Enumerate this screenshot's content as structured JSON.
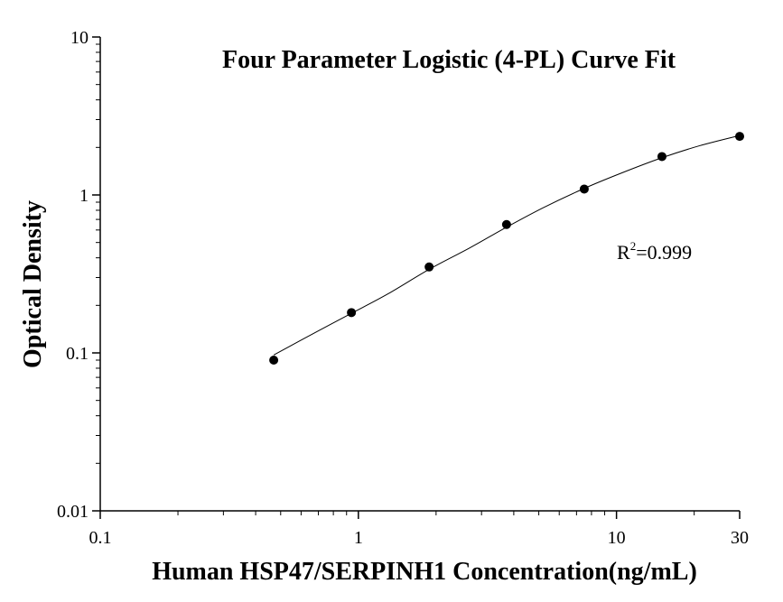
{
  "chart_data": {
    "type": "scatter",
    "title": "Four Parameter Logistic (4-PL) Curve Fit",
    "xlabel": "Human HSP47/SERPINH1 Concentration(ng/mL)",
    "ylabel": "Optical Density",
    "x_scale": "log",
    "y_scale": "log",
    "xlim": [
      0.1,
      30
    ],
    "ylim": [
      0.01,
      10
    ],
    "x_ticks": [
      {
        "value": 0.1,
        "label": "0.1"
      },
      {
        "value": 1,
        "label": "1"
      },
      {
        "value": 10,
        "label": "10"
      },
      {
        "value": 30,
        "label": "30"
      }
    ],
    "y_ticks": [
      {
        "value": 0.01,
        "label": "0.01"
      },
      {
        "value": 0.1,
        "label": "0.1"
      },
      {
        "value": 1,
        "label": "1"
      },
      {
        "value": 10,
        "label": "10"
      }
    ],
    "grid": false,
    "legend": "none",
    "points": [
      {
        "x": 0.47,
        "y": 0.09
      },
      {
        "x": 0.94,
        "y": 0.18
      },
      {
        "x": 1.88,
        "y": 0.35
      },
      {
        "x": 3.75,
        "y": 0.65
      },
      {
        "x": 7.5,
        "y": 1.09
      },
      {
        "x": 15,
        "y": 1.75
      },
      {
        "x": 30,
        "y": 2.35
      }
    ],
    "fit_curve": [
      {
        "x": 0.47,
        "y": 0.097
      },
      {
        "x": 0.7,
        "y": 0.138
      },
      {
        "x": 0.94,
        "y": 0.178
      },
      {
        "x": 1.3,
        "y": 0.236
      },
      {
        "x": 1.88,
        "y": 0.338
      },
      {
        "x": 2.7,
        "y": 0.462
      },
      {
        "x": 3.75,
        "y": 0.625
      },
      {
        "x": 5.2,
        "y": 0.83
      },
      {
        "x": 7.5,
        "y": 1.1
      },
      {
        "x": 10.5,
        "y": 1.38
      },
      {
        "x": 15,
        "y": 1.72
      },
      {
        "x": 21,
        "y": 2.05
      },
      {
        "x": 30,
        "y": 2.38
      }
    ],
    "annotation": {
      "text_base": "R",
      "text_sup": "2",
      "text_rest": "=0.999"
    },
    "colors": {
      "marker": "#000000",
      "line": "#000000",
      "axis": "#000000"
    }
  }
}
